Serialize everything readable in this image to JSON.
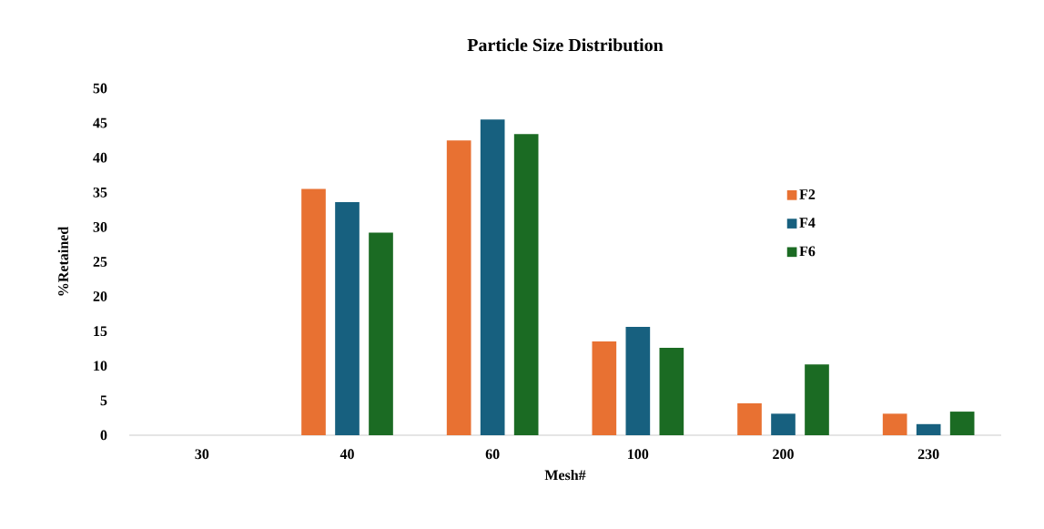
{
  "chart_data": {
    "type": "bar",
    "title": "Particle Size Distribution",
    "xlabel": "Mesh#",
    "ylabel": "%Retained",
    "categories": [
      "30",
      "40",
      "60",
      "100",
      "200",
      "230"
    ],
    "series": [
      {
        "name": "F2",
        "color": "#e87132",
        "values": [
          0,
          35.5,
          42.5,
          13.5,
          4.6,
          3.1
        ]
      },
      {
        "name": "F4",
        "color": "#17607f",
        "values": [
          0,
          33.6,
          45.5,
          15.6,
          3.1,
          1.6
        ]
      },
      {
        "name": "F6",
        "color": "#1b6b23",
        "values": [
          0,
          29.2,
          43.4,
          12.6,
          10.2,
          3.4
        ]
      }
    ],
    "ylim": [
      0,
      50
    ],
    "yticks": [
      0,
      5,
      10,
      15,
      20,
      25,
      30,
      35,
      40,
      45,
      50
    ],
    "legend": "right"
  }
}
